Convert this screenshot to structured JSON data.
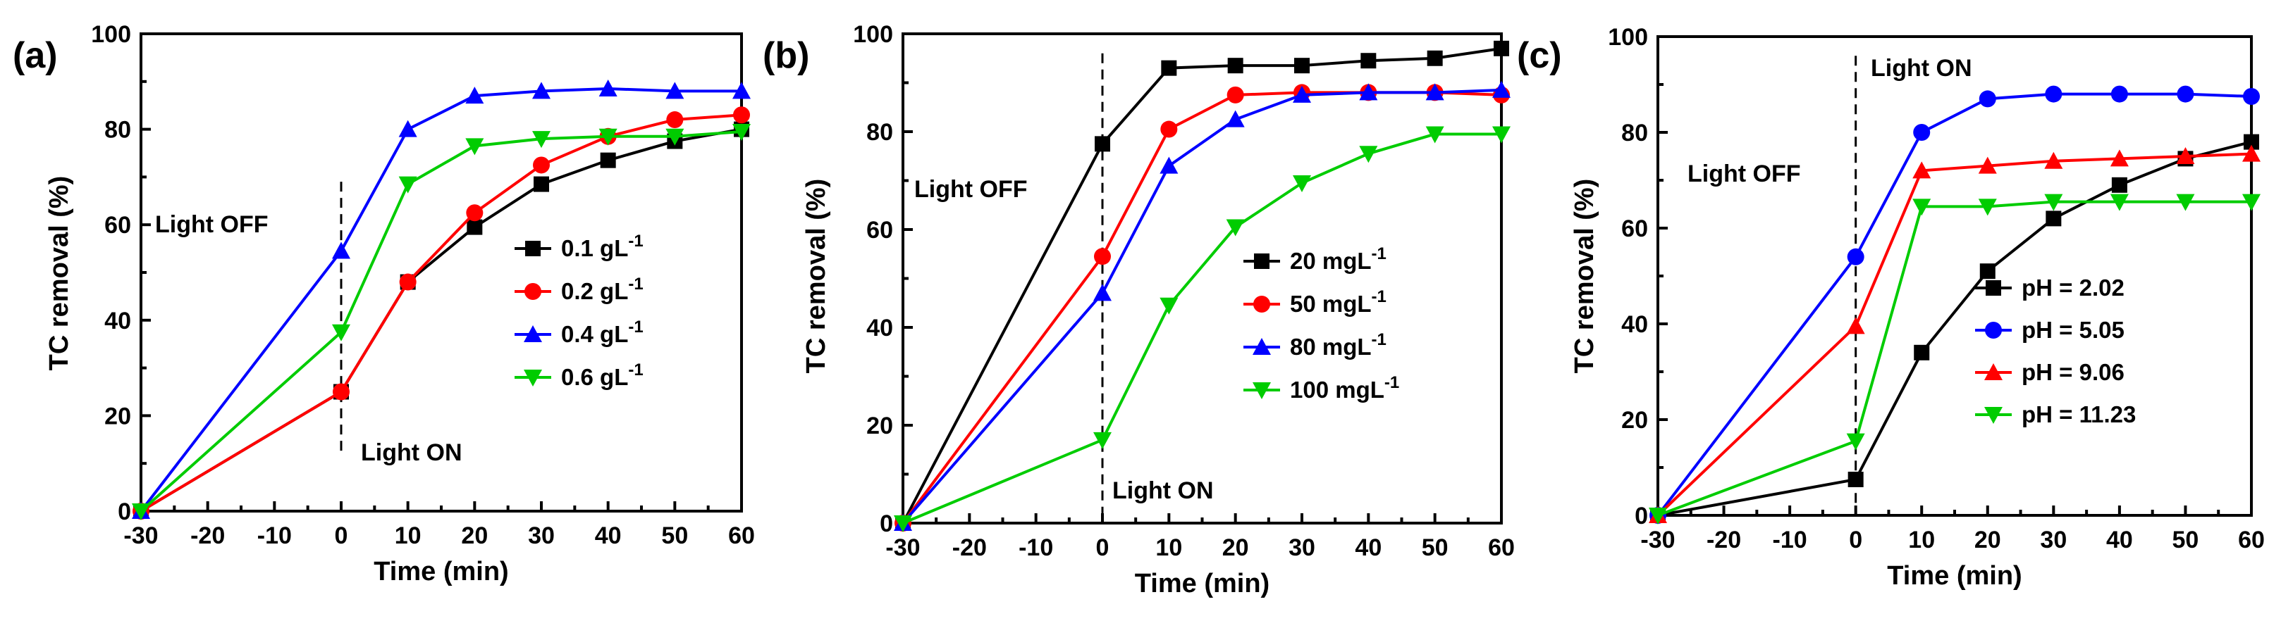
{
  "chart_data": [
    {
      "type": "line",
      "panel_label": "(a)",
      "xlabel": "Time (min)",
      "ylabel": "TC removal (%)",
      "x": [
        -30,
        0,
        10,
        20,
        30,
        40,
        50,
        60
      ],
      "xlim": [
        -30,
        60
      ],
      "ylim": [
        0,
        100
      ],
      "xticks": [
        "-30",
        "-20",
        "-10",
        "0",
        "10",
        "20",
        "30",
        "40",
        "50",
        "60"
      ],
      "yticks": [
        "0",
        "20",
        "40",
        "60",
        "80",
        "100"
      ],
      "annotations": {
        "light_off": "Light OFF",
        "light_on": "Light ON"
      },
      "legend_position": "center-right",
      "series": [
        {
          "name": "0.1 gL",
          "sup": "-1",
          "color": "#000000",
          "marker": "square",
          "values": [
            0,
            25,
            48,
            59.5,
            68.5,
            73.5,
            77.5,
            80
          ]
        },
        {
          "name": "0.2 gL",
          "sup": "-1",
          "color": "#ff0000",
          "marker": "circle",
          "values": [
            0,
            25,
            48,
            62.5,
            72.5,
            78.5,
            82,
            83
          ]
        },
        {
          "name": "0.4 gL",
          "sup": "-1",
          "color": "#0000ff",
          "marker": "triangle-up",
          "values": [
            0,
            54.5,
            80,
            87,
            88,
            88.5,
            88,
            88
          ]
        },
        {
          "name": "0.6 gL",
          "sup": "-1",
          "color": "#00cc00",
          "marker": "triangle-down",
          "values": [
            0,
            37.5,
            68.5,
            76.5,
            78,
            78.5,
            78.5,
            79.5
          ]
        }
      ]
    },
    {
      "type": "line",
      "panel_label": "(b)",
      "xlabel": "Time (min)",
      "ylabel": "TC removal (%)",
      "x": [
        -30,
        0,
        10,
        20,
        30,
        40,
        50,
        60
      ],
      "xlim": [
        -30,
        60
      ],
      "ylim": [
        0,
        100
      ],
      "xticks": [
        "-30",
        "-20",
        "-10",
        "0",
        "10",
        "20",
        "30",
        "40",
        "50",
        "60"
      ],
      "yticks": [
        "0",
        "20",
        "40",
        "60",
        "80",
        "100"
      ],
      "annotations": {
        "light_off": "Light OFF",
        "light_on": "Light ON"
      },
      "legend_position": "center-right",
      "series": [
        {
          "name": "20 mgL",
          "sup": "-1",
          "color": "#000000",
          "marker": "square",
          "values": [
            0,
            77.5,
            93,
            93.5,
            93.5,
            94.5,
            95,
            97
          ]
        },
        {
          "name": "50 mgL",
          "sup": "-1",
          "color": "#ff0000",
          "marker": "circle",
          "values": [
            0,
            54.5,
            80.5,
            87.5,
            88,
            88,
            88,
            87.5
          ]
        },
        {
          "name": "80 mgL",
          "sup": "-1",
          "color": "#0000ff",
          "marker": "triangle-up",
          "values": [
            0,
            47,
            73,
            82.5,
            87.5,
            88,
            88,
            88.5
          ]
        },
        {
          "name": "100 mgL",
          "sup": "-1",
          "color": "#00cc00",
          "marker": "triangle-down",
          "values": [
            0,
            17,
            44.5,
            60.5,
            69.5,
            75.5,
            79.5,
            79.5
          ]
        }
      ]
    },
    {
      "type": "line",
      "panel_label": "(c)",
      "xlabel": "Time (min)",
      "ylabel": "TC removal (%)",
      "x": [
        -30,
        0,
        10,
        20,
        30,
        40,
        50,
        60
      ],
      "xlim": [
        -30,
        60
      ],
      "ylim": [
        0,
        100
      ],
      "xticks": [
        "-30",
        "-20",
        "-10",
        "0",
        "10",
        "20",
        "30",
        "40",
        "50",
        "60"
      ],
      "yticks": [
        "0",
        "20",
        "40",
        "60",
        "80",
        "100"
      ],
      "annotations": {
        "light_off": "Light OFF",
        "light_on": "Light ON"
      },
      "legend_position": "bottom-right",
      "series": [
        {
          "name": "pH = 2.02",
          "sup": "",
          "color": "#000000",
          "marker": "square",
          "values": [
            0,
            7.5,
            34,
            51,
            62,
            69,
            74.5,
            78
          ]
        },
        {
          "name": "pH = 5.05",
          "sup": "",
          "color": "#0000ff",
          "marker": "circle",
          "values": [
            0,
            54,
            80,
            87,
            88,
            88,
            88,
            87.5
          ]
        },
        {
          "name": "pH = 9.06",
          "sup": "",
          "color": "#ff0000",
          "marker": "triangle-up",
          "values": [
            0,
            39.5,
            72,
            73,
            74,
            74.5,
            75,
            75.5
          ]
        },
        {
          "name": "pH = 11.23",
          "sup": "",
          "color": "#00cc00",
          "marker": "triangle-down",
          "values": [
            0,
            15.5,
            64.5,
            64.5,
            65.5,
            65.5,
            65.5,
            65.5
          ]
        }
      ]
    }
  ]
}
